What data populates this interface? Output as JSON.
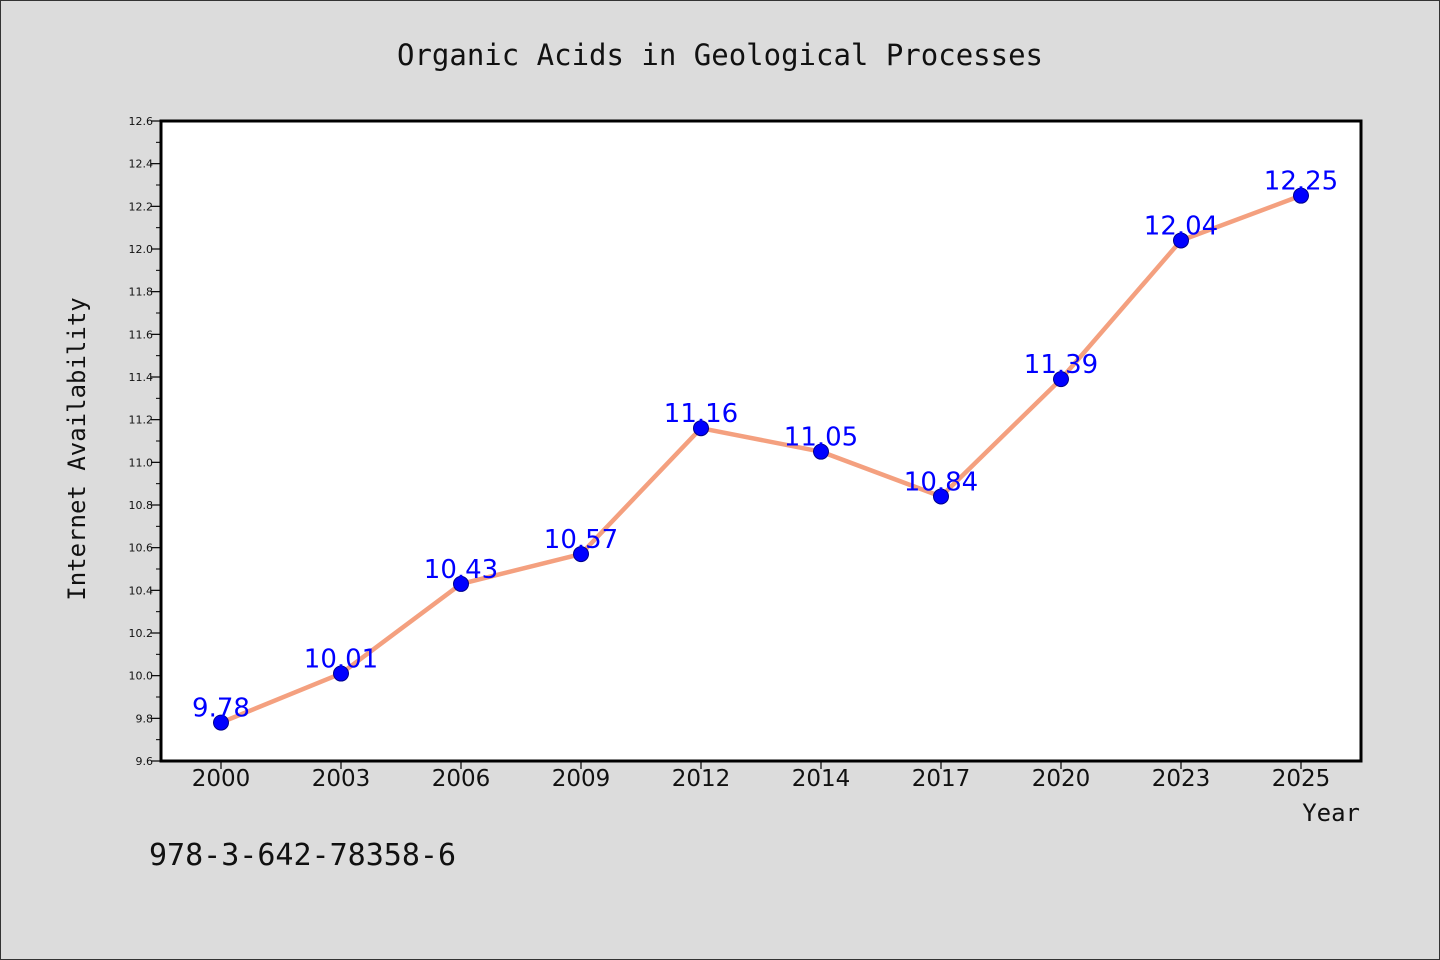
{
  "chart_data": {
    "type": "line",
    "title": "Organic Acids in Geological Processes",
    "xlabel": "Year",
    "ylabel": "Internet Availability",
    "categories": [
      "2000",
      "2003",
      "2006",
      "2009",
      "2012",
      "2014",
      "2017",
      "2020",
      "2023",
      "2025"
    ],
    "series": [
      {
        "values": [
          9.78,
          10.01,
          10.43,
          10.57,
          11.16,
          11.05,
          10.84,
          11.39,
          12.04,
          12.25
        ]
      }
    ],
    "data_labels": [
      "9.78",
      "10.01",
      "10.43",
      "10.57",
      "11.16",
      "11.05",
      "10.84",
      "11.39",
      "12.04",
      "12.25"
    ],
    "ylim": [
      9.6,
      12.6
    ],
    "yticks": [
      "9.6",
      "9.8",
      "10.0",
      "10.2",
      "10.4",
      "10.6",
      "10.8",
      "11.0",
      "11.2",
      "11.4",
      "11.6",
      "11.8",
      "12.0",
      "12.2",
      "12.4",
      "12.6"
    ],
    "grid": false,
    "colors": {
      "line": "#f4a07f",
      "marker": "#0000ff",
      "label": "#0000ff",
      "plot_background": "#ffffff",
      "figure_background": "#dcdcdc"
    }
  },
  "footer": {
    "text": "978-3-642-78358-6"
  }
}
